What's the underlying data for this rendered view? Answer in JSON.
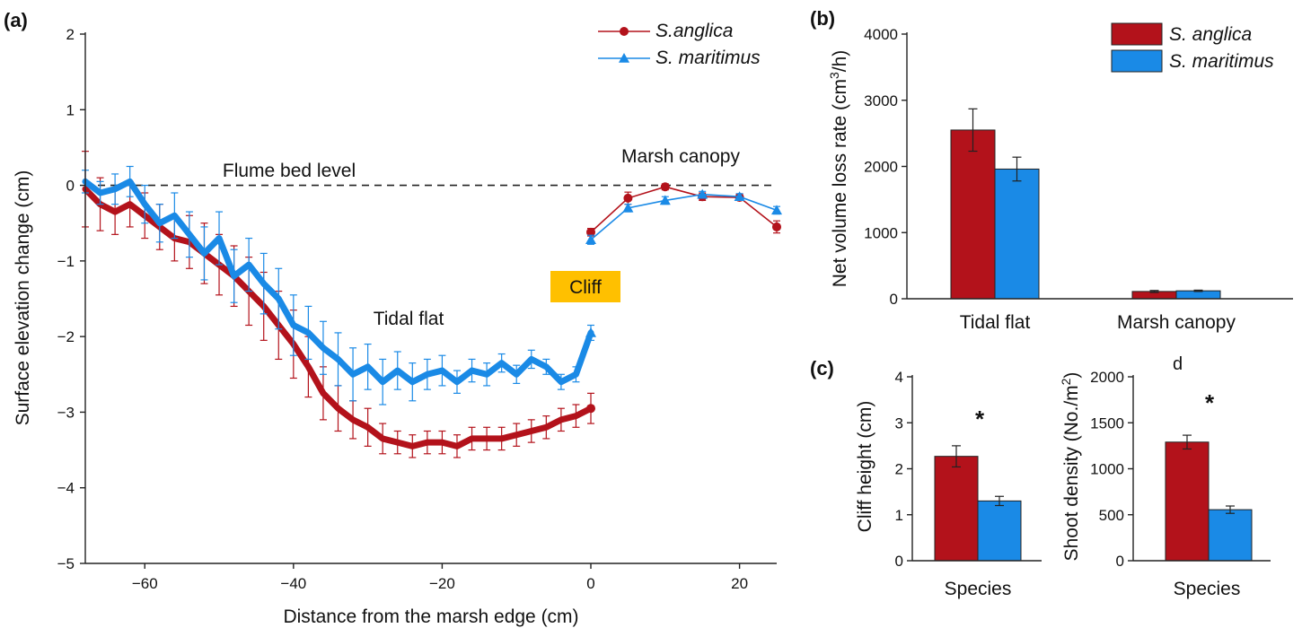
{
  "colors": {
    "s_anglica": "#b3121b",
    "s_maritimus": "#1a8ae6",
    "cliff_box": "#ffc000"
  },
  "chart_data": [
    {
      "panel": "(a)",
      "type": "line",
      "xlabel": "Distance from the marsh edge (cm)",
      "ylabel": "Surface elevation change (cm)",
      "xlim": [
        -68,
        25
      ],
      "ylim": [
        -5,
        2
      ],
      "xticks": [
        -60,
        -40,
        -20,
        0,
        20
      ],
      "yticks": [
        2,
        1,
        0,
        -1,
        -2,
        -3,
        -4,
        -5
      ],
      "legend_position": "top-right",
      "annotations": {
        "bed_level": "Flume bed level",
        "tidal_flat": "Tidal flat",
        "cliff": "Cliff",
        "canopy": "Marsh canopy"
      },
      "series": [
        {
          "name": "S.anglica",
          "key": "s_anglica",
          "marker": "circle",
          "flat": {
            "x": [
              -68,
              -66,
              -64,
              -62,
              -60,
              -58,
              -56,
              -54,
              -52,
              -50,
              -48,
              -46,
              -44,
              -42,
              -40,
              -38,
              -36,
              -34,
              -32,
              -30,
              -28,
              -26,
              -24,
              -22,
              -20,
              -18,
              -16,
              -14,
              -12,
              -10,
              -8,
              -6,
              -4,
              -2,
              0
            ],
            "y": [
              -0.05,
              -0.25,
              -0.35,
              -0.25,
              -0.4,
              -0.55,
              -0.7,
              -0.75,
              -0.9,
              -1.05,
              -1.2,
              -1.4,
              -1.6,
              -1.85,
              -2.1,
              -2.4,
              -2.75,
              -2.95,
              -3.1,
              -3.2,
              -3.35,
              -3.4,
              -3.45,
              -3.4,
              -3.4,
              -3.45,
              -3.35,
              -3.35,
              -3.35,
              -3.3,
              -3.25,
              -3.2,
              -3.1,
              -3.05,
              -2.95
            ],
            "err": [
              0.5,
              0.35,
              0.3,
              0.3,
              0.3,
              0.3,
              0.3,
              0.35,
              0.4,
              0.4,
              0.4,
              0.45,
              0.45,
              0.45,
              0.45,
              0.4,
              0.35,
              0.3,
              0.25,
              0.25,
              0.2,
              0.15,
              0.15,
              0.15,
              0.15,
              0.15,
              0.15,
              0.15,
              0.15,
              0.15,
              0.15,
              0.15,
              0.15,
              0.15,
              0.2
            ]
          },
          "canopy": {
            "x": [
              0,
              5,
              10,
              15,
              20,
              25
            ],
            "y": [
              -0.62,
              -0.17,
              -0.02,
              -0.15,
              -0.16,
              -0.55
            ],
            "err": [
              0.05,
              0.08,
              0.04,
              0.05,
              0.04,
              0.08
            ]
          }
        },
        {
          "name": "S. maritimus",
          "key": "s_maritimus",
          "marker": "triangle",
          "flat": {
            "x": [
              -68,
              -66,
              -64,
              -62,
              -60,
              -58,
              -56,
              -54,
              -52,
              -50,
              -48,
              -46,
              -44,
              -42,
              -40,
              -38,
              -36,
              -34,
              -32,
              -30,
              -28,
              -26,
              -24,
              -22,
              -20,
              -18,
              -16,
              -14,
              -12,
              -10,
              -8,
              -6,
              -4,
              -2,
              0
            ],
            "y": [
              0.05,
              -0.1,
              -0.05,
              0.05,
              -0.25,
              -0.5,
              -0.4,
              -0.65,
              -0.9,
              -0.7,
              -1.2,
              -1.05,
              -1.3,
              -1.5,
              -1.85,
              -1.95,
              -2.15,
              -2.3,
              -2.5,
              -2.4,
              -2.6,
              -2.45,
              -2.6,
              -2.5,
              -2.45,
              -2.6,
              -2.45,
              -2.5,
              -2.35,
              -2.5,
              -2.3,
              -2.4,
              -2.6,
              -2.5,
              -1.95
            ],
            "err": [
              0.15,
              0.15,
              0.2,
              0.2,
              0.25,
              0.25,
              0.3,
              0.3,
              0.35,
              0.35,
              0.35,
              0.35,
              0.4,
              0.4,
              0.4,
              0.35,
              0.35,
              0.35,
              0.35,
              0.3,
              0.3,
              0.25,
              0.25,
              0.2,
              0.2,
              0.15,
              0.15,
              0.15,
              0.12,
              0.12,
              0.12,
              0.1,
              0.1,
              0.1,
              0.1
            ]
          },
          "canopy": {
            "x": [
              0,
              5,
              10,
              15,
              20,
              25
            ],
            "y": [
              -0.72,
              -0.3,
              -0.2,
              -0.12,
              -0.15,
              -0.33
            ],
            "err": [
              0.06,
              0.05,
              0.05,
              0.04,
              0.04,
              0.05
            ]
          }
        }
      ]
    },
    {
      "panel": "(b)",
      "type": "bar",
      "categories": [
        "Tidal flat",
        "Marsh canopy"
      ],
      "ylabel": "Net volume loss rate (cm",
      "ylabel_sup": "3",
      "ylabel_end": "/h)",
      "ylim": [
        0,
        4000
      ],
      "yticks": [
        0,
        1000,
        2000,
        3000,
        4000
      ],
      "legend_position": "top-right",
      "series": [
        {
          "name": "S. anglica",
          "key": "s_anglica",
          "values": [
            2550,
            110
          ],
          "err": [
            320,
            15
          ]
        },
        {
          "name": "S. maritimus",
          "key": "s_maritimus",
          "values": [
            1960,
            120
          ],
          "err": [
            180,
            10
          ]
        }
      ]
    },
    {
      "panel": "(c)",
      "type": "bar",
      "categories": [
        "Species"
      ],
      "xlabel": "Species",
      "ylabel": "Cliff height (cm)",
      "ylim": [
        0,
        4
      ],
      "yticks": [
        0,
        1,
        2,
        3,
        4
      ],
      "significance": "*",
      "series": [
        {
          "key": "s_anglica",
          "values": [
            2.27
          ],
          "err": [
            0.23
          ]
        },
        {
          "key": "s_maritimus",
          "values": [
            1.3
          ],
          "err": [
            0.1
          ]
        }
      ]
    },
    {
      "panel": "d",
      "type": "bar",
      "categories": [
        "Species"
      ],
      "xlabel": "Species",
      "ylabel": "Shoot density (No./m",
      "ylabel_sup": "2",
      "ylabel_end": ")",
      "ylim": [
        0,
        2000
      ],
      "yticks": [
        0,
        500,
        1000,
        1500,
        2000
      ],
      "significance": "*",
      "series": [
        {
          "key": "s_anglica",
          "values": [
            1290
          ],
          "err": [
            75
          ]
        },
        {
          "key": "s_maritimus",
          "values": [
            555
          ],
          "err": [
            40
          ]
        }
      ]
    }
  ]
}
